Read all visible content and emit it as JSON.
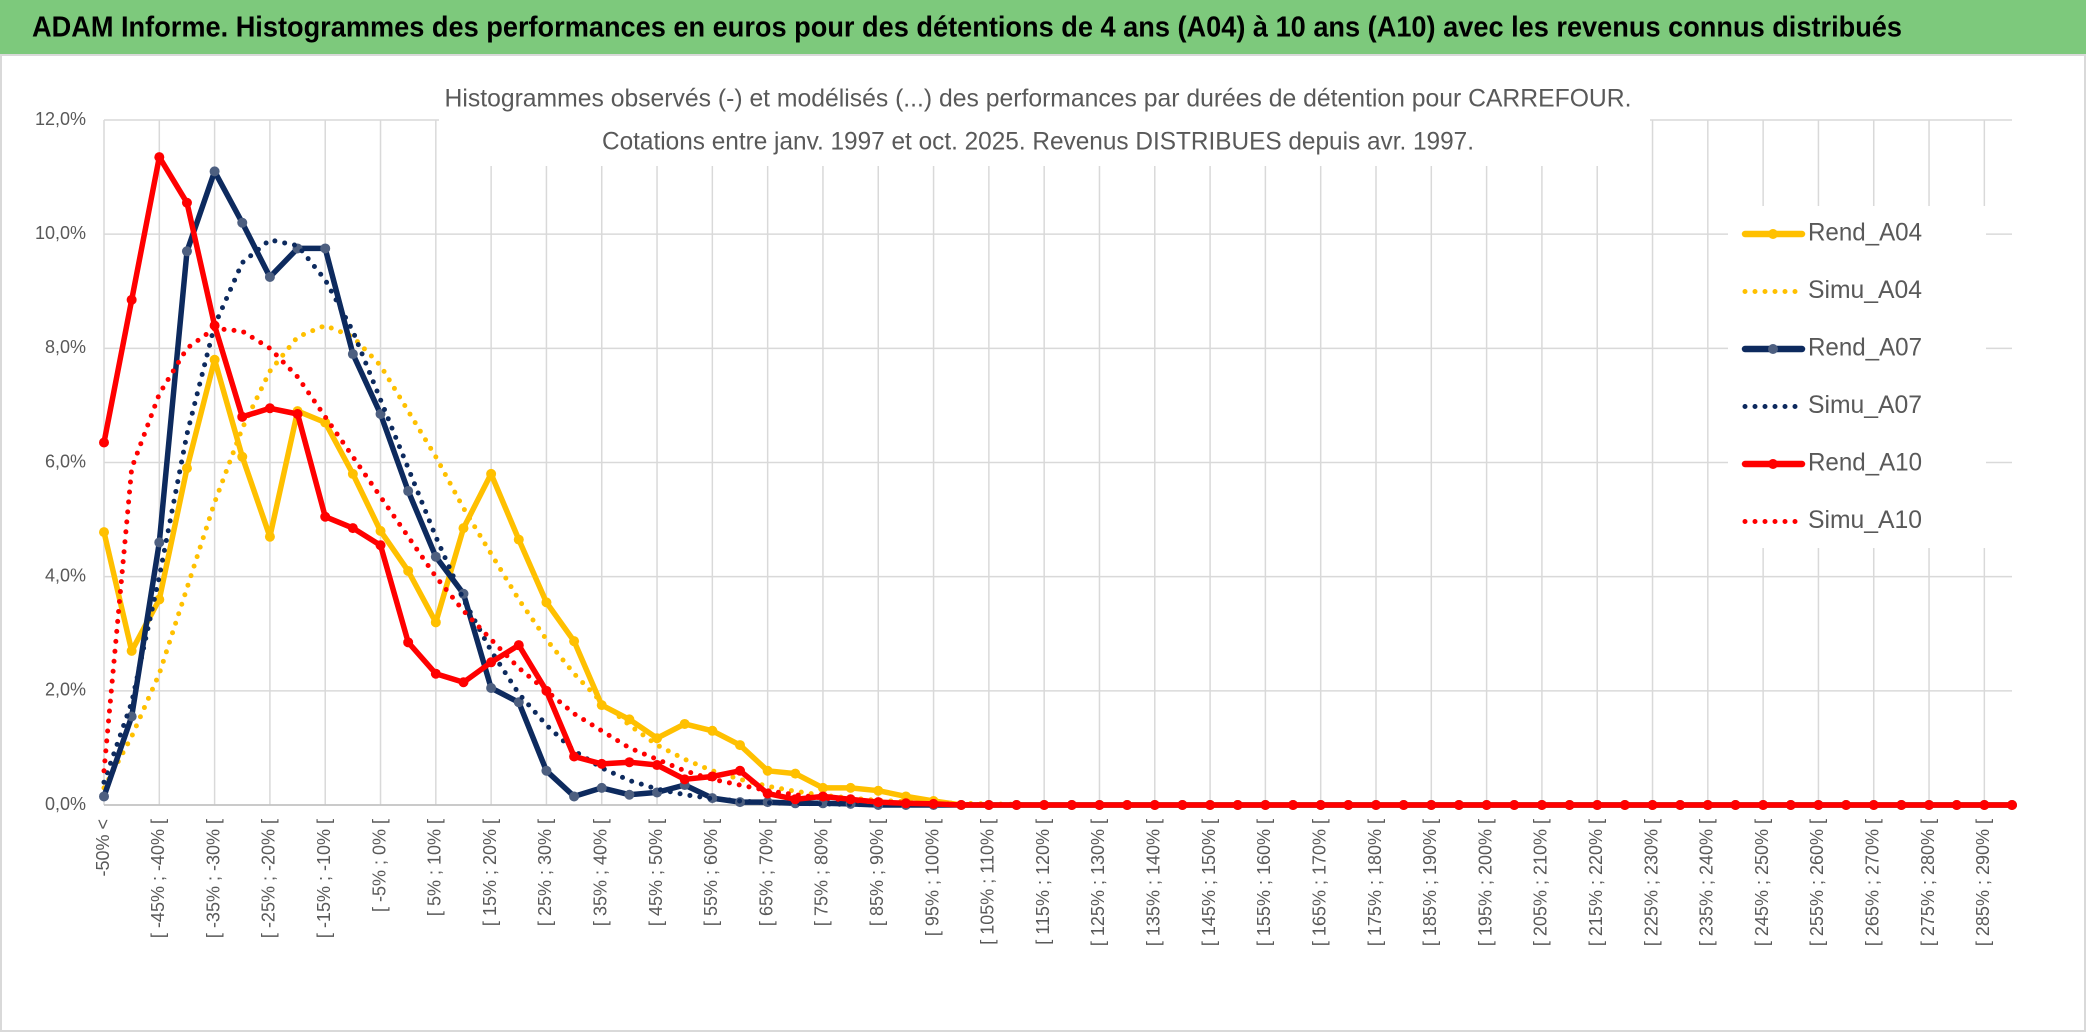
{
  "chart_data": {
    "type": "line",
    "title": "ADAM Informe. Histogrammes des performances en euros pour des détentions de 4 ans (A04) à 10 ans (A10) avec les revenus connus distribués",
    "subtitle": [
      "Histogrammes observés (-) et modélisés (...) des performances par durées de détention pour CARREFOUR.",
      "Cotations entre janv. 1997 et oct. 2025. Revenus DISTRIBUES depuis avr. 1997."
    ],
    "categories": [
      "-50% <",
      null,
      "[ -45% ; -40% [",
      null,
      "[ -35% ; -30% [",
      null,
      "[ -25% ; -20% [",
      null,
      "[ -15% ; -10% [",
      null,
      "[ -5% ; 0% [",
      null,
      "[ 5% ; 10% [",
      null,
      "[ 15% ; 20% [",
      null,
      "[ 25% ; 30% [",
      null,
      "[ 35% ; 40% [",
      null,
      "[ 45% ; 50% [",
      null,
      "[ 55% ; 60% [",
      null,
      "[ 65% ; 70% [",
      null,
      "[ 75% ; 80% [",
      null,
      "[ 85% ; 90% [",
      null,
      "[ 95% ; 100% [",
      null,
      "[ 105% ; 110% [",
      null,
      "[ 115% ; 120% [",
      null,
      "[ 125% ; 130% [",
      null,
      "[ 135% ; 140% [",
      null,
      "[ 145% ; 150% [",
      null,
      "[ 155% ; 160% [",
      null,
      "[ 165% ; 170% [",
      null,
      "[ 175% ; 180% [",
      null,
      "[ 185% ; 190% [",
      null,
      "[ 195% ; 200% [",
      null,
      "[ 205% ; 210% [",
      null,
      "[ 215% ; 220% [",
      null,
      "[ 225% ; 230% [",
      null,
      "[ 235% ; 240% [",
      null,
      "[ 245% ; 250% [",
      null,
      "[ 255% ; 260% [",
      null,
      "[ 265% ; 270% [",
      null,
      "[ 275% ; 280% [",
      null,
      "[ 285% ; 290% [",
      null
    ],
    "series": [
      {
        "name": "Rend_A04",
        "color": "#ffc000",
        "style": "solid",
        "values": [
          4.78,
          2.7,
          3.6,
          5.9,
          7.8,
          6.1,
          4.7,
          6.9,
          6.7,
          5.8,
          4.8,
          4.1,
          3.2,
          4.85,
          5.8,
          4.65,
          3.55,
          2.87,
          1.75,
          1.5,
          1.17,
          1.42,
          1.3,
          1.05,
          0.6,
          0.55,
          0.3,
          0.3,
          0.25,
          0.15,
          0.07,
          0,
          0,
          0,
          0,
          0,
          0,
          0,
          0,
          0,
          0,
          0,
          0,
          0,
          0,
          0,
          0,
          0,
          0,
          0,
          0,
          0,
          0,
          0,
          0,
          0,
          0,
          0,
          0,
          0,
          0,
          0,
          0,
          0,
          0,
          0,
          0,
          0,
          0,
          0
        ]
      },
      {
        "name": "Simu_A04",
        "color": "#ffc000",
        "style": "dotted",
        "values": [
          0.3,
          1.2,
          2.3,
          3.8,
          5.3,
          6.6,
          7.6,
          8.2,
          8.4,
          8.2,
          7.7,
          6.9,
          6.1,
          5.2,
          4.4,
          3.6,
          2.9,
          2.3,
          1.8,
          1.4,
          1.05,
          0.8,
          0.6,
          0.45,
          0.33,
          0.24,
          0.17,
          0.12,
          0.08,
          0.06,
          0.04,
          0.03,
          0.02,
          0.01,
          0,
          0,
          0,
          0,
          0,
          0,
          0,
          0,
          0,
          0,
          0,
          0,
          0,
          0,
          0,
          0,
          0,
          0,
          0,
          0,
          0,
          0,
          0,
          0,
          0,
          0,
          0,
          0,
          0,
          0,
          0,
          0,
          0,
          0,
          0,
          0
        ]
      },
      {
        "name": "Rend_A07",
        "color": "#0d2a5e",
        "style": "solid",
        "values": [
          0.15,
          1.55,
          4.6,
          9.7,
          11.1,
          10.2,
          9.25,
          9.75,
          9.75,
          7.9,
          6.85,
          5.5,
          4.35,
          3.7,
          2.05,
          1.8,
          0.6,
          0.15,
          0.3,
          0.18,
          0.22,
          0.35,
          0.12,
          0.05,
          0.05,
          0.03,
          0.03,
          0.02,
          0,
          0,
          0,
          0,
          0,
          0,
          0,
          0,
          0,
          0,
          0,
          0,
          0,
          0,
          0,
          0,
          0,
          0,
          0,
          0,
          0,
          0,
          0,
          0,
          0,
          0,
          0,
          0,
          0,
          0,
          0,
          0,
          0,
          0,
          0,
          0,
          0,
          0,
          0,
          0,
          0,
          0
        ]
      },
      {
        "name": "Simu_A07",
        "color": "#0d2a5e",
        "style": "dotted",
        "values": [
          0.4,
          1.8,
          4.0,
          6.5,
          8.4,
          9.5,
          9.9,
          9.8,
          9.2,
          8.3,
          7.1,
          5.9,
          4.7,
          3.6,
          2.7,
          1.95,
          1.4,
          0.95,
          0.65,
          0.43,
          0.28,
          0.18,
          0.11,
          0.07,
          0.04,
          0.03,
          0.02,
          0.01,
          0,
          0,
          0,
          0,
          0,
          0,
          0,
          0,
          0,
          0,
          0,
          0,
          0,
          0,
          0,
          0,
          0,
          0,
          0,
          0,
          0,
          0,
          0,
          0,
          0,
          0,
          0,
          0,
          0,
          0,
          0,
          0,
          0,
          0,
          0,
          0,
          0,
          0,
          0,
          0,
          0,
          0
        ]
      },
      {
        "name": "Rend_A10",
        "color": "#ff0000",
        "style": "solid",
        "values": [
          6.35,
          8.85,
          11.35,
          10.55,
          8.4,
          6.8,
          6.95,
          6.85,
          5.05,
          4.85,
          4.55,
          2.85,
          2.3,
          2.15,
          2.5,
          2.8,
          2.0,
          0.85,
          0.72,
          0.75,
          0.7,
          0.45,
          0.5,
          0.6,
          0.2,
          0.1,
          0.15,
          0.1,
          0.05,
          0.03,
          0.02,
          0,
          0,
          0,
          0,
          0,
          0,
          0,
          0,
          0,
          0,
          0,
          0,
          0,
          0,
          0,
          0,
          0,
          0,
          0,
          0,
          0,
          0,
          0,
          0,
          0,
          0,
          0,
          0,
          0,
          0,
          0,
          0,
          0,
          0,
          0,
          0,
          0,
          0,
          0
        ]
      },
      {
        "name": "Simu_A10",
        "color": "#ff0000",
        "style": "dotted",
        "values": [
          0.6,
          5.9,
          7.2,
          8.0,
          8.35,
          8.3,
          8.0,
          7.5,
          6.8,
          6.1,
          5.4,
          4.7,
          4.0,
          3.4,
          2.9,
          2.4,
          2.0,
          1.6,
          1.3,
          1.0,
          0.8,
          0.6,
          0.45,
          0.35,
          0.25,
          0.18,
          0.12,
          0.08,
          0.05,
          0.03,
          0.02,
          0.01,
          0,
          0,
          0,
          0,
          0,
          0,
          0,
          0,
          0,
          0,
          0,
          0,
          0,
          0,
          0,
          0,
          0,
          0,
          0,
          0,
          0,
          0,
          0,
          0,
          0,
          0,
          0,
          0,
          0,
          0,
          0,
          0,
          0,
          0,
          0,
          0,
          0,
          0
        ]
      }
    ],
    "ylim": [
      0,
      12
    ],
    "yticks": [
      {
        "value": 0,
        "label": "0,0%"
      },
      {
        "value": 2,
        "label": "2,0%"
      },
      {
        "value": 4,
        "label": "4,0%"
      },
      {
        "value": 6,
        "label": "6,0%"
      },
      {
        "value": 8,
        "label": "8,0%"
      },
      {
        "value": 10,
        "label": "10,0%"
      },
      {
        "value": 12,
        "label": "12,0%"
      }
    ],
    "grid": true,
    "legend": "right"
  }
}
